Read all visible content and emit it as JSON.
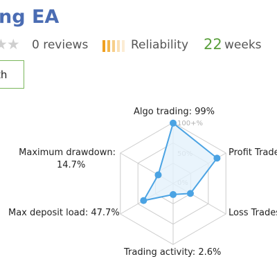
{
  "header": {
    "title_partial": "ng EA"
  },
  "stats": {
    "reviews_label": "0 reviews",
    "reliability_label": "Reliability",
    "weeks_value": "22",
    "weeks_label": "weeks",
    "star_icon": "star-icon",
    "reliability_colors": [
      "#f0a020",
      "#f3b64a",
      "#f7cf8a",
      "#fae0b5",
      "#fcecd4"
    ]
  },
  "tab": {
    "label_partial": "th"
  },
  "chart_data": {
    "type": "radar",
    "axes": [
      {
        "name": "Algo trading",
        "value": 99,
        "label": "Algo trading: 99%"
      },
      {
        "name": "Profit Trades",
        "value": 80,
        "label": "Profit Trade"
      },
      {
        "name": "Loss Trades",
        "value": 20,
        "label": "Loss Trades"
      },
      {
        "name": "Trading activity",
        "value": 2.6,
        "label": "Trading activity: 2.6%"
      },
      {
        "name": "Max deposit load",
        "value": 47.7,
        "label": "Max deposit load: 47.7%"
      },
      {
        "name": "Maximum drawdown",
        "value": 14.7,
        "label_line1": "Maximum drawdown:",
        "label_line2": "14.7%"
      }
    ],
    "ticks": [
      "100+%",
      "50%",
      "0%"
    ],
    "range": [
      0,
      100
    ],
    "colors": {
      "line": "#4ba3e3",
      "fill": "#e3f1fb",
      "grid": "#cccccc"
    }
  }
}
